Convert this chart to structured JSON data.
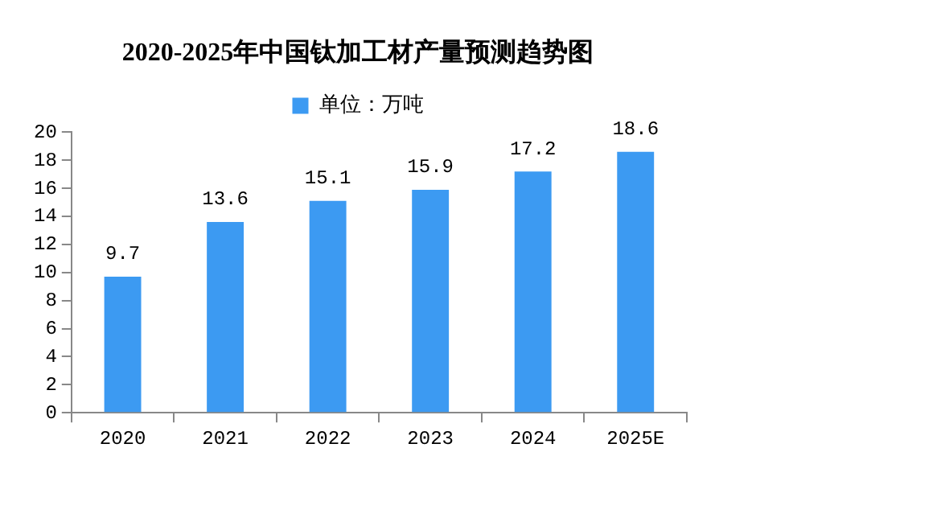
{
  "chart_data": {
    "type": "bar",
    "title": "2020-2025年中国钛加工材产量预测趋势图",
    "categories": [
      "2020",
      "2021",
      "2022",
      "2023",
      "2024",
      "2025E"
    ],
    "series": [
      {
        "name": "单位：万吨",
        "color": "#3c9af2",
        "values": [
          9.7,
          13.6,
          15.1,
          15.9,
          17.2,
          18.6
        ]
      }
    ],
    "ylim": [
      0,
      20
    ],
    "yticks": [
      0,
      2,
      4,
      6,
      8,
      10,
      12,
      14,
      16,
      18,
      20
    ],
    "grid": false,
    "legend": "top",
    "data_labels": true
  }
}
